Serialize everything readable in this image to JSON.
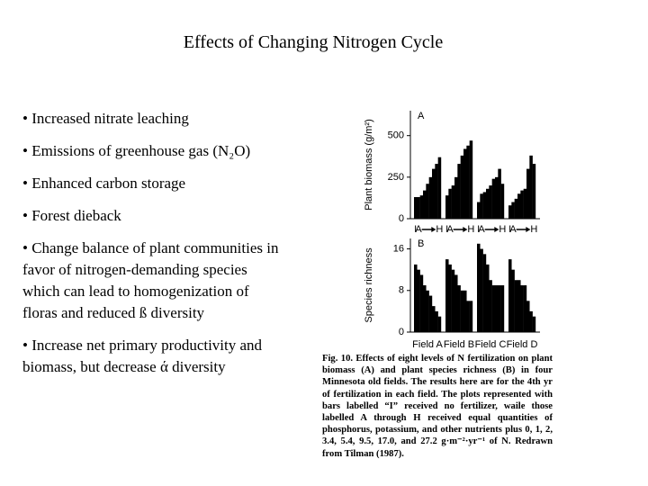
{
  "title": "Effects of Changing Nitrogen Cycle",
  "bullets": [
    "• Increased nitrate leaching",
    "• Emissions of greenhouse gas (N₂O)",
    "• Enhanced carbon storage",
    "• Forest dieback",
    "• Change balance of plant communities in favor of nitrogen-demanding species which can lead to homogenization of floras and reduced ß diversity",
    "• Increase net primary productivity and biomass, but decrease ά diversity"
  ],
  "caption": "Fig. 10. Effects of eight levels of N fertilization on plant biomass (A) and plant species richness (B) in four Minnesota old fields. The results here are for the 4th yr of fertilization in each field. The plots represented with bars labelled “I” received no fertilizer, waile those labelled A through H received equal quantities of phosphorus, potassium, and other nutrients plus 0, 1, 2, 3.4, 5.4, 9.5, 17.0, and 27.2 g·m⁻²·yr⁻¹ of N. Redrawn from Tilman (1987).",
  "chart_data": [
    {
      "type": "bar",
      "panel": "A",
      "y_label": "Plant biomass (g/m²)",
      "categories": [
        "I",
        "A",
        null,
        null,
        null,
        null,
        null,
        null,
        "H"
      ],
      "ylim": [
        0,
        650
      ],
      "yticks": [
        0,
        250,
        500
      ],
      "color": "#000000",
      "series": [
        {
          "values": [
            130,
            130,
            140,
            170,
            210,
            250,
            300,
            330,
            370
          ]
        },
        {
          "values": [
            140,
            180,
            200,
            250,
            330,
            380,
            420,
            440,
            470
          ]
        },
        {
          "values": [
            100,
            150,
            160,
            180,
            200,
            240,
            250,
            300,
            210
          ]
        },
        {
          "values": [
            80,
            100,
            120,
            150,
            170,
            180,
            300,
            380,
            330
          ]
        }
      ]
    },
    {
      "type": "bar",
      "panel": "B",
      "y_label": "Species richness",
      "ylim": [
        0,
        18
      ],
      "yticks": [
        0,
        8,
        16
      ],
      "color": "#000000",
      "series": [
        {
          "name": "Field A",
          "values": [
            13,
            12,
            11,
            9,
            8,
            7,
            5,
            4,
            3
          ]
        },
        {
          "name": "Field B",
          "values": [
            14,
            13,
            12,
            11,
            9,
            8,
            8,
            6,
            6
          ]
        },
        {
          "name": "Field C",
          "values": [
            17,
            16,
            15,
            13,
            10,
            9,
            9,
            9,
            9
          ]
        },
        {
          "name": "Field D",
          "values": [
            14,
            12,
            10,
            10,
            9,
            9,
            6,
            4,
            3
          ]
        }
      ]
    }
  ]
}
